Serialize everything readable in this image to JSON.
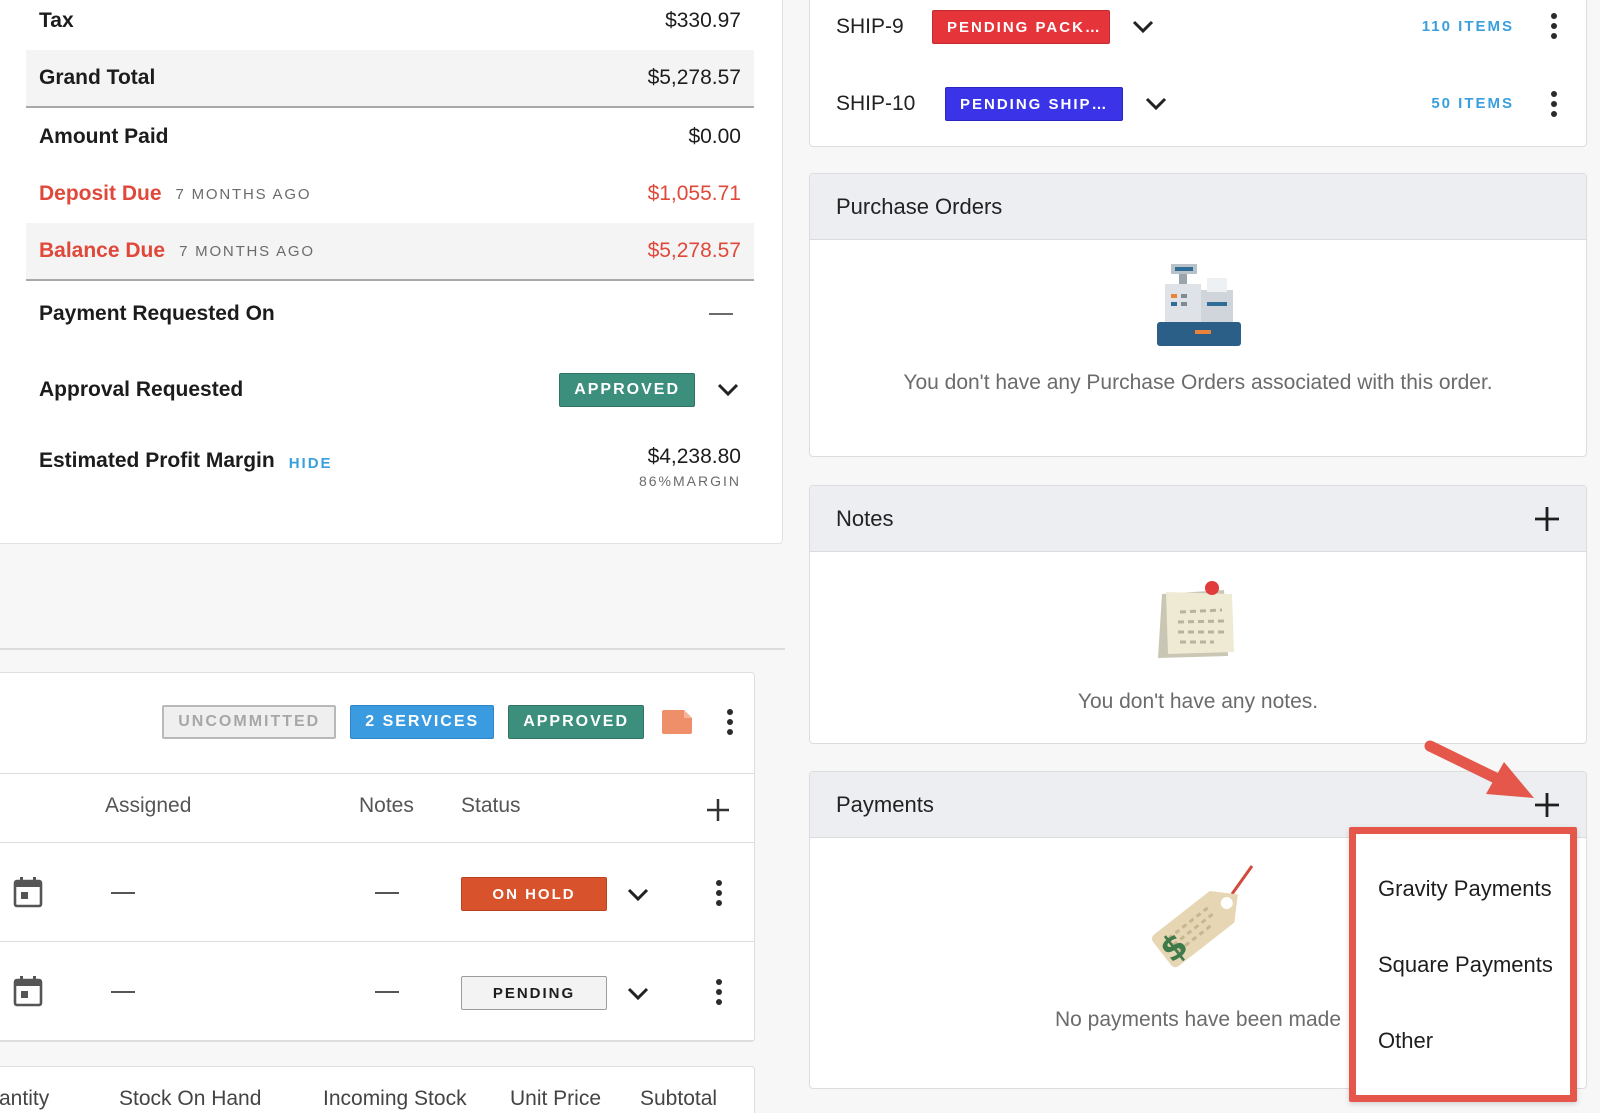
{
  "totals": {
    "tax_label": "Tax",
    "tax_value": "$330.97",
    "grand_total_label": "Grand Total",
    "grand_total_value": "$5,278.57",
    "amount_paid_label": "Amount Paid",
    "amount_paid_value": "$0.00",
    "deposit_due_label": "Deposit Due",
    "deposit_due_ago": "7 MONTHS AGO",
    "deposit_due_value": "$1,055.71",
    "balance_due_label": "Balance Due",
    "balance_due_ago": "7 MONTHS AGO",
    "balance_due_value": "$5,278.57",
    "payment_requested_label": "Payment Requested On",
    "approval_requested_label": "Approval Requested",
    "approval_badge": "APPROVED",
    "profit_margin_label": "Estimated Profit Margin",
    "profit_hide_link": "HIDE",
    "profit_margin_value": "$4,238.80",
    "profit_margin_pct": "86%MARGIN"
  },
  "services": {
    "tags": [
      "UNCOMMITTED",
      "2 SERVICES",
      "APPROVED"
    ],
    "columns": [
      "Assigned",
      "Notes",
      "Status"
    ],
    "rows": [
      {
        "status": "ON HOLD"
      },
      {
        "status": "PENDING"
      }
    ]
  },
  "stock_columns": [
    "antity",
    "Stock On Hand",
    "Incoming Stock",
    "Unit Price",
    "Subtotal"
  ],
  "shipments": [
    {
      "id": "SHIP-9",
      "status": "PENDING PACK…",
      "color": "#e5343a",
      "items": "110 ITEMS"
    },
    {
      "id": "SHIP-10",
      "status": "PENDING SHIP…",
      "color": "#3a33e8",
      "items": "50 ITEMS"
    }
  ],
  "purchase_orders": {
    "title": "Purchase Orders",
    "empty": "You don't have any Purchase Orders associated with this order."
  },
  "notes": {
    "title": "Notes",
    "empty": "You don't have any notes."
  },
  "payments": {
    "title": "Payments",
    "empty": "No payments have been made",
    "menu": [
      "Gravity Payments",
      "Square Payments",
      "Other"
    ]
  }
}
